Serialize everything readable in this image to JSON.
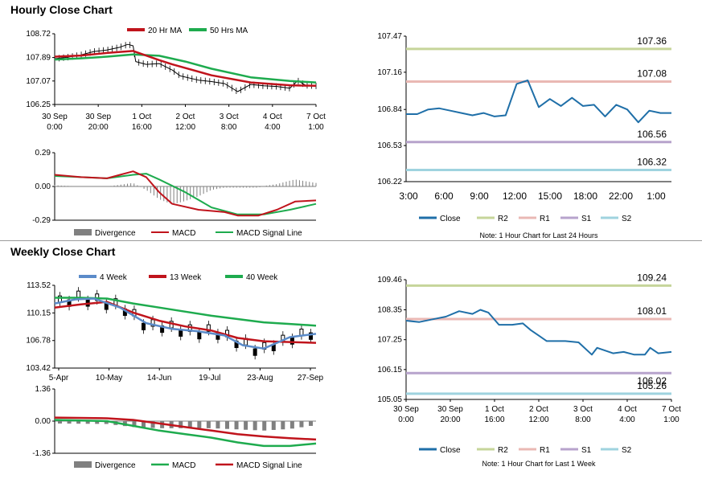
{
  "colors": {
    "ma20": "#c0141c",
    "ma50": "#1eab4e",
    "ma4": "#5b8bc9",
    "macd_red": "#c0141c",
    "macd_green": "#1eab4e",
    "divergence": "#808080",
    "close": "#1f6fa8",
    "r2": "#c6d59a",
    "r1": "#eab8b4",
    "s1": "#b7a3cc",
    "s2": "#9fd3df",
    "candle": "#000000"
  },
  "hourly": {
    "title": "Hourly Close Chart",
    "legend": [
      "20 Hr MA",
      "50 Hrs MA"
    ],
    "macd_legend": [
      "Divergence",
      "MACD",
      "MACD Signal Line"
    ]
  },
  "weekly": {
    "title": "Weekly Close Chart",
    "legend": [
      "4 Week",
      "13 Week",
      "40 Week"
    ],
    "macd_legend": [
      "Divergence",
      "MACD",
      "MACD Signal Line"
    ]
  },
  "right_legend": [
    "Close",
    "R2",
    "R1",
    "S1",
    "S2"
  ],
  "notes": {
    "hourly": "Note: 1 Hour Chart for Last 24 Hours",
    "weekly": "Note: 1 Hour Chart for Last 1 Week"
  },
  "chart_data": [
    {
      "id": "hourly_price",
      "type": "line",
      "yticks": [
        "108.72",
        "107.89",
        "107.07",
        "106.25"
      ],
      "ylim": [
        106.25,
        108.72
      ],
      "xticks": [
        [
          "30 Sep",
          "0:00"
        ],
        [
          "30 Sep",
          "20:00"
        ],
        [
          "1 Oct",
          "16:00"
        ],
        [
          "2 Oct",
          "12:00"
        ],
        [
          "3 Oct",
          "8:00"
        ],
        [
          "4 Oct",
          "4:00"
        ],
        [
          "7 Oct",
          "1:00"
        ]
      ],
      "series": [
        {
          "name": "20 Hr MA",
          "x": [
            0,
            0.1,
            0.2,
            0.3,
            0.4,
            0.45,
            0.6,
            0.75,
            0.9,
            1.0
          ],
          "values": [
            107.92,
            107.96,
            108.05,
            108.12,
            107.8,
            107.65,
            107.27,
            107.02,
            106.92,
            106.9
          ]
        },
        {
          "name": "50 Hrs MA",
          "x": [
            0,
            0.1,
            0.2,
            0.3,
            0.4,
            0.5,
            0.6,
            0.75,
            0.9,
            1.0
          ],
          "values": [
            107.82,
            107.86,
            107.92,
            108.0,
            107.95,
            107.75,
            107.5,
            107.2,
            107.07,
            107.02
          ]
        },
        {
          "name": "Close",
          "x": [
            0,
            0.05,
            0.1,
            0.15,
            0.2,
            0.25,
            0.28,
            0.3,
            0.31,
            0.35,
            0.4,
            0.45,
            0.48,
            0.55,
            0.6,
            0.65,
            0.7,
            0.75,
            0.8,
            0.85,
            0.9,
            0.93,
            0.96,
            1.0
          ],
          "values": [
            107.85,
            107.9,
            107.98,
            108.1,
            108.15,
            108.25,
            108.35,
            108.3,
            107.75,
            107.65,
            107.68,
            107.45,
            107.25,
            107.1,
            107.05,
            106.98,
            106.7,
            106.95,
            106.9,
            106.88,
            106.82,
            107.08,
            106.92,
            106.9
          ]
        }
      ]
    },
    {
      "id": "hourly_macd",
      "type": "line",
      "yticks": [
        "0.29",
        "0.00",
        "-0.29"
      ],
      "ylim": [
        -0.29,
        0.29
      ],
      "series": [
        {
          "name": "MACD",
          "x": [
            0,
            0.1,
            0.2,
            0.25,
            0.3,
            0.35,
            0.4,
            0.45,
            0.55,
            0.65,
            0.7,
            0.78,
            0.85,
            0.92,
            1.0
          ],
          "values": [
            0.1,
            0.08,
            0.07,
            0.1,
            0.13,
            0.08,
            -0.05,
            -0.15,
            -0.2,
            -0.22,
            -0.25,
            -0.25,
            -0.2,
            -0.13,
            -0.12
          ]
        },
        {
          "name": "MACD Signal Line",
          "x": [
            0,
            0.1,
            0.2,
            0.3,
            0.35,
            0.4,
            0.5,
            0.6,
            0.7,
            0.8,
            0.9,
            1.0
          ],
          "values": [
            0.09,
            0.08,
            0.07,
            0.1,
            0.11,
            0.06,
            -0.05,
            -0.18,
            -0.24,
            -0.24,
            -0.2,
            -0.15
          ]
        }
      ]
    },
    {
      "id": "hourly_levels",
      "type": "line",
      "yticks": [
        "107.47",
        "107.16",
        "106.84",
        "106.53",
        "106.22"
      ],
      "ylim": [
        106.22,
        107.47
      ],
      "xticks": [
        "3:00",
        "6:00",
        "9:00",
        "12:00",
        "15:00",
        "18:00",
        "22:00",
        "1:00"
      ],
      "levels": [
        {
          "name": "R2",
          "value": 107.36
        },
        {
          "name": "R1",
          "value": 107.08
        },
        {
          "name": "S1",
          "value": 106.56
        },
        {
          "name": "S2",
          "value": 106.32
        }
      ],
      "level_labels": [
        "107.36",
        "107.08",
        "106.56",
        "106.32"
      ],
      "series": [
        {
          "name": "Close",
          "x": [
            0,
            1,
            2,
            3,
            4,
            5,
            6,
            7,
            8,
            9,
            10,
            11,
            12,
            13,
            14,
            15,
            16,
            17,
            18,
            19,
            20,
            21,
            22,
            23,
            24
          ],
          "values": [
            106.8,
            106.8,
            106.84,
            106.85,
            106.83,
            106.81,
            106.79,
            106.81,
            106.78,
            106.79,
            107.06,
            107.09,
            106.86,
            106.93,
            106.87,
            106.94,
            106.87,
            106.88,
            106.78,
            106.88,
            106.84,
            106.73,
            106.83,
            106.81,
            106.81
          ]
        }
      ]
    },
    {
      "id": "weekly_price",
      "type": "line",
      "yticks": [
        "113.52",
        "110.15",
        "106.78",
        "103.42"
      ],
      "ylim": [
        103.42,
        113.52
      ],
      "xticks": [
        "5-Apr",
        "10-May",
        "14-Jun",
        "19-Jul",
        "23-Aug",
        "27-Sep"
      ],
      "series": [
        {
          "name": "4 Week",
          "x": [
            0,
            0.08,
            0.15,
            0.25,
            0.35,
            0.45,
            0.55,
            0.65,
            0.72,
            0.8,
            0.85,
            0.9,
            1.0
          ],
          "values": [
            111.3,
            111.8,
            111.9,
            110.8,
            108.9,
            108.2,
            107.9,
            107.4,
            106.2,
            105.8,
            106.5,
            107.2,
            107.6
          ]
        },
        {
          "name": "13 Week",
          "x": [
            0,
            0.1,
            0.2,
            0.3,
            0.4,
            0.5,
            0.6,
            0.7,
            0.8,
            0.9,
            1.0
          ],
          "values": [
            110.8,
            111.2,
            111.5,
            110.2,
            109.2,
            108.5,
            108.0,
            107.1,
            106.7,
            106.6,
            106.5
          ]
        },
        {
          "name": "40 Week",
          "x": [
            0,
            0.1,
            0.2,
            0.3,
            0.4,
            0.5,
            0.6,
            0.7,
            0.8,
            0.9,
            1.0
          ],
          "values": [
            112.0,
            112.0,
            111.9,
            111.3,
            110.8,
            110.3,
            109.8,
            109.4,
            109.0,
            108.8,
            108.6
          ]
        }
      ]
    },
    {
      "id": "weekly_macd",
      "type": "line",
      "yticks": [
        "1.36",
        "0.00",
        "-1.36"
      ],
      "ylim": [
        -1.36,
        1.36
      ],
      "series": [
        {
          "name": "MACD",
          "x": [
            0,
            0.2,
            0.3,
            0.4,
            0.5,
            0.6,
            0.7,
            0.8,
            0.9,
            1.0
          ],
          "values": [
            0.05,
            0.0,
            -0.2,
            -0.4,
            -0.55,
            -0.7,
            -0.9,
            -1.05,
            -1.05,
            -0.95
          ]
        },
        {
          "name": "MACD Signal Line",
          "x": [
            0,
            0.2,
            0.3,
            0.4,
            0.5,
            0.6,
            0.7,
            0.8,
            0.9,
            1.0
          ],
          "values": [
            0.15,
            0.12,
            0.05,
            -0.1,
            -0.25,
            -0.4,
            -0.55,
            -0.65,
            -0.72,
            -0.78
          ]
        }
      ]
    },
    {
      "id": "weekly_levels",
      "type": "line",
      "yticks": [
        "109.46",
        "108.35",
        "107.25",
        "106.15",
        "105.05"
      ],
      "ylim": [
        105.05,
        109.46
      ],
      "xticks": [
        [
          "30 Sep",
          "0:00"
        ],
        [
          "30 Sep",
          "20:00"
        ],
        [
          "1 Oct",
          "16:00"
        ],
        [
          "2 Oct",
          "12:00"
        ],
        [
          "3 Oct",
          "8:00"
        ],
        [
          "4 Oct",
          "4:00"
        ],
        [
          "7 Oct",
          "1:00"
        ]
      ],
      "levels": [
        {
          "name": "R2",
          "value": 109.24
        },
        {
          "name": "R1",
          "value": 108.01
        },
        {
          "name": "S1",
          "value": 106.02
        },
        {
          "name": "S2",
          "value": 105.26
        }
      ],
      "level_labels": [
        "109.24",
        "108.01",
        "106.02",
        "105.26"
      ],
      "series": [
        {
          "name": "Close",
          "x": [
            0,
            0.05,
            0.1,
            0.15,
            0.2,
            0.25,
            0.28,
            0.31,
            0.35,
            0.4,
            0.44,
            0.47,
            0.5,
            0.53,
            0.55,
            0.6,
            0.65,
            0.7,
            0.72,
            0.75,
            0.78,
            0.82,
            0.86,
            0.9,
            0.92,
            0.95,
            1.0
          ],
          "values": [
            107.95,
            107.9,
            108.0,
            108.1,
            108.3,
            108.2,
            108.35,
            108.25,
            107.8,
            107.8,
            107.85,
            107.6,
            107.4,
            107.2,
            107.2,
            107.2,
            107.15,
            106.7,
            106.95,
            106.85,
            106.75,
            106.8,
            106.7,
            106.7,
            106.95,
            106.75,
            106.8
          ]
        }
      ]
    }
  ]
}
